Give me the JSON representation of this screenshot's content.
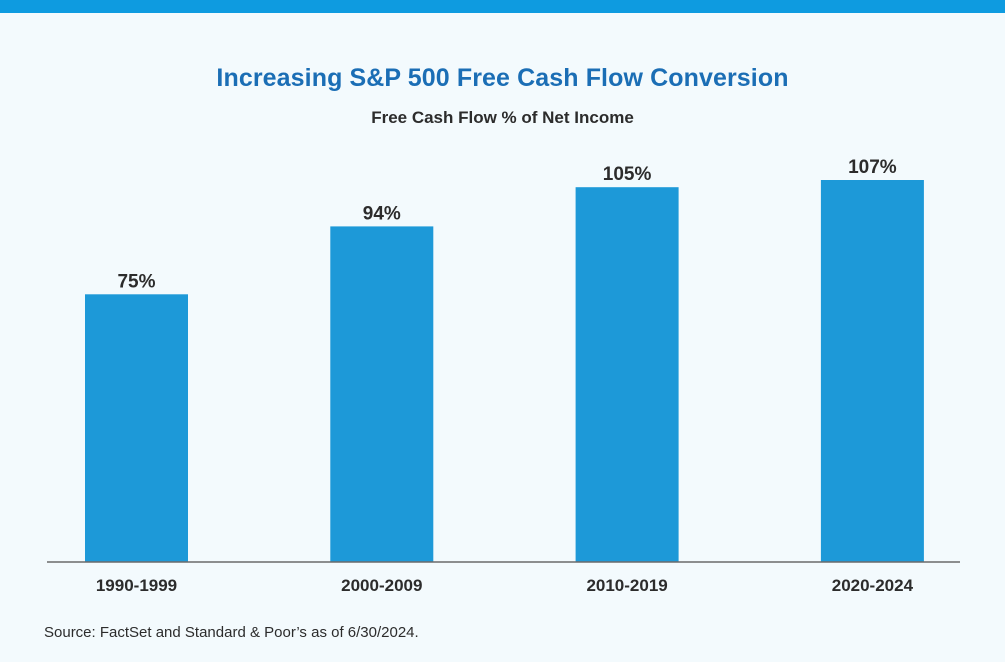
{
  "colors": {
    "accent_bar": "#0e9be0",
    "title": "#1b6eb5",
    "bar": "#1d99d8",
    "text": "#2c2c2c",
    "axis": "#6b6b6b",
    "background": "#f3fafd"
  },
  "chart_data": {
    "type": "bar",
    "title": "Increasing S&P 500 Free Cash Flow Conversion",
    "subtitle": "Free Cash Flow % of Net Income",
    "categories": [
      "1990-1999",
      "2000-2009",
      "2010-2019",
      "2020-2024"
    ],
    "values": [
      75,
      94,
      105,
      107
    ],
    "data_labels": [
      "75%",
      "94%",
      "105%",
      "107%"
    ],
    "xlabel": "",
    "ylabel": "",
    "ylim": [
      0,
      120
    ],
    "grid": false,
    "legend": "none"
  },
  "footer": {
    "source": "Source: FactSet and Standard & Poor’s as of 6/30/2024."
  }
}
